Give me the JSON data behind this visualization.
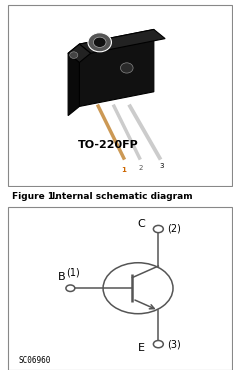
{
  "bg_color": "#ffffff",
  "figure_label": "Figure 1.",
  "figure_title": "Internal schematic diagram",
  "package_label": "TO-220FP",
  "sc_code": "SC06960",
  "pin1_color": "#cc6600",
  "pin2_color": "#555555",
  "pin3_color": "#000000",
  "border_color": "#888888",
  "line_color": "#555555",
  "body_dark": "#111111",
  "body_mid": "#222222",
  "body_light": "#333333"
}
